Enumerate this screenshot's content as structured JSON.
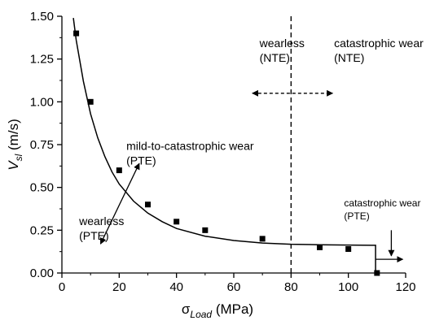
{
  "chart_data": {
    "type": "scatter",
    "xlabel": {
      "main": "σ",
      "sub": "Load",
      "unit": " (MPa)"
    },
    "ylabel": {
      "main": "V",
      "sub": "sl",
      "unit": " (m/s)"
    },
    "xlim": [
      0,
      120
    ],
    "ylim": [
      0,
      1.5
    ],
    "xticks": [
      0,
      20,
      40,
      60,
      80,
      100,
      120
    ],
    "yticks": [
      0.0,
      0.25,
      0.5,
      0.75,
      1.0,
      1.25,
      1.5
    ],
    "xtick_labels": [
      "0",
      "20",
      "40",
      "60",
      "80",
      "100",
      "120"
    ],
    "ytick_labels": [
      "0.00",
      "0.25",
      "0.50",
      "0.75",
      "1.00",
      "1.25",
      "1.50"
    ],
    "series": [
      {
        "marker": "square",
        "color": "#000000",
        "x": [
          5,
          10,
          20,
          30,
          40,
          50,
          70,
          90,
          100,
          110
        ],
        "y": [
          1.4,
          1.0,
          0.6,
          0.4,
          0.3,
          0.25,
          0.2,
          0.15,
          0.14,
          0.0
        ]
      }
    ],
    "fit_curve": {
      "x": [
        4,
        5,
        7.5,
        10,
        12.5,
        15,
        17.5,
        20,
        25,
        30,
        35,
        40,
        50,
        60,
        70,
        80,
        90,
        100,
        108,
        109.5
      ],
      "y": [
        1.49,
        1.36,
        1.12,
        0.93,
        0.79,
        0.68,
        0.59,
        0.52,
        0.42,
        0.35,
        0.3,
        0.26,
        0.215,
        0.19,
        0.175,
        0.168,
        0.165,
        0.163,
        0.162,
        0.162
      ],
      "drop_x": 109.5,
      "drop_to_y": 0.0
    },
    "vertical_line": {
      "x": 80,
      "style": "dashed"
    },
    "annotations": [
      {
        "lines": [
          "wearless",
          "(NTE)"
        ],
        "x": 69,
        "y_top": 1.32,
        "anchor": "start"
      },
      {
        "lines": [
          "catastrophic wear",
          "(NTE)"
        ],
        "x": 95,
        "y_top": 1.32,
        "anchor": "start"
      },
      {
        "lines": [
          "mild-to-catastrophic wear",
          "(PTE)"
        ],
        "x": 22.5,
        "y_top": 0.72,
        "anchor": "start"
      },
      {
        "lines": [
          "wearless",
          "(PTE)"
        ],
        "x": 6,
        "y_top": 0.28,
        "anchor": "start"
      },
      {
        "lines": [
          "catastrophic wear",
          "(PTE)"
        ],
        "x": 98.5,
        "y_top": 0.39,
        "anchor": "start",
        "small": true
      }
    ],
    "arrows": [
      {
        "style": "dashed",
        "double": true,
        "x1": 66.5,
        "y1": 1.05,
        "x2": 94.5,
        "y2": 1.05
      },
      {
        "style": "solid",
        "double": true,
        "x1": 27,
        "y1": 0.64,
        "x2": 13.5,
        "y2": 0.17
      },
      {
        "style": "solid",
        "double": false,
        "x1": 115,
        "y1": 0.25,
        "x2": 115,
        "y2": 0.1
      },
      {
        "style": "solid",
        "double": false,
        "x1": 109.5,
        "y1": 0.08,
        "x2": 119,
        "y2": 0.08
      }
    ]
  }
}
